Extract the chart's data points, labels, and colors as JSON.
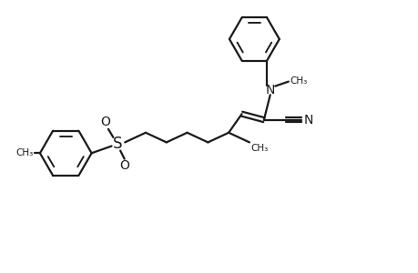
{
  "background_color": "#ffffff",
  "line_color": "#1a1a1a",
  "line_width": 1.6,
  "figsize": [
    4.6,
    3.0
  ],
  "dpi": 100,
  "xlim": [
    0,
    10
  ],
  "ylim": [
    0,
    6.5
  ]
}
